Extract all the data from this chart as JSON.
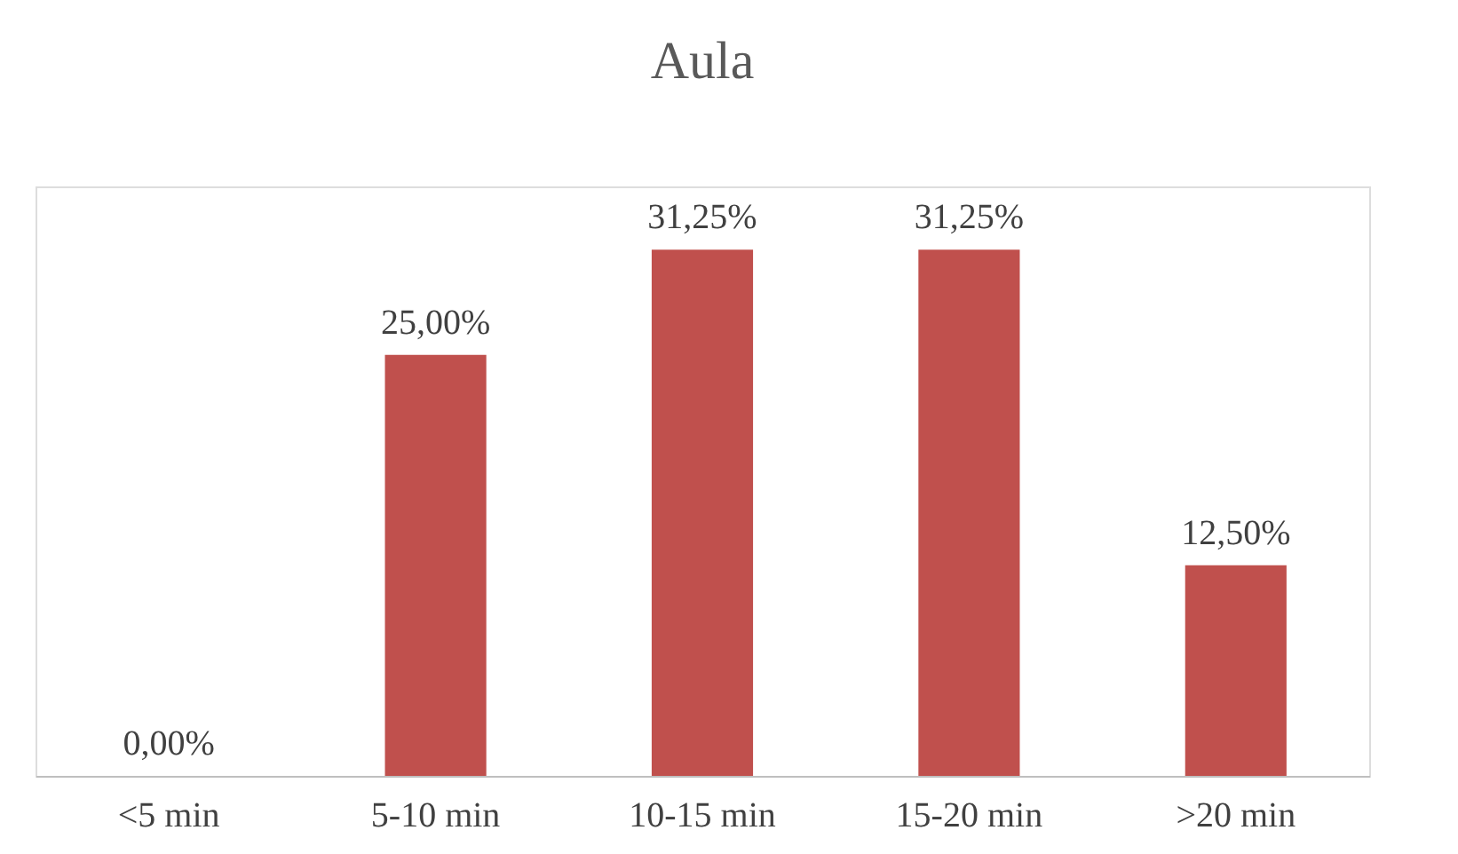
{
  "chart_data": {
    "type": "bar",
    "title": "Aula",
    "categories": [
      "<5 min",
      "5-10 min",
      "10-15 min",
      "15-20 min",
      ">20 min"
    ],
    "values": [
      0,
      25,
      31.25,
      31.25,
      12.5
    ],
    "value_labels": [
      "0,00%",
      "25,00%",
      "31,25%",
      "31,25%",
      "12,50%"
    ],
    "color": "#c0504d",
    "grid": false
  }
}
